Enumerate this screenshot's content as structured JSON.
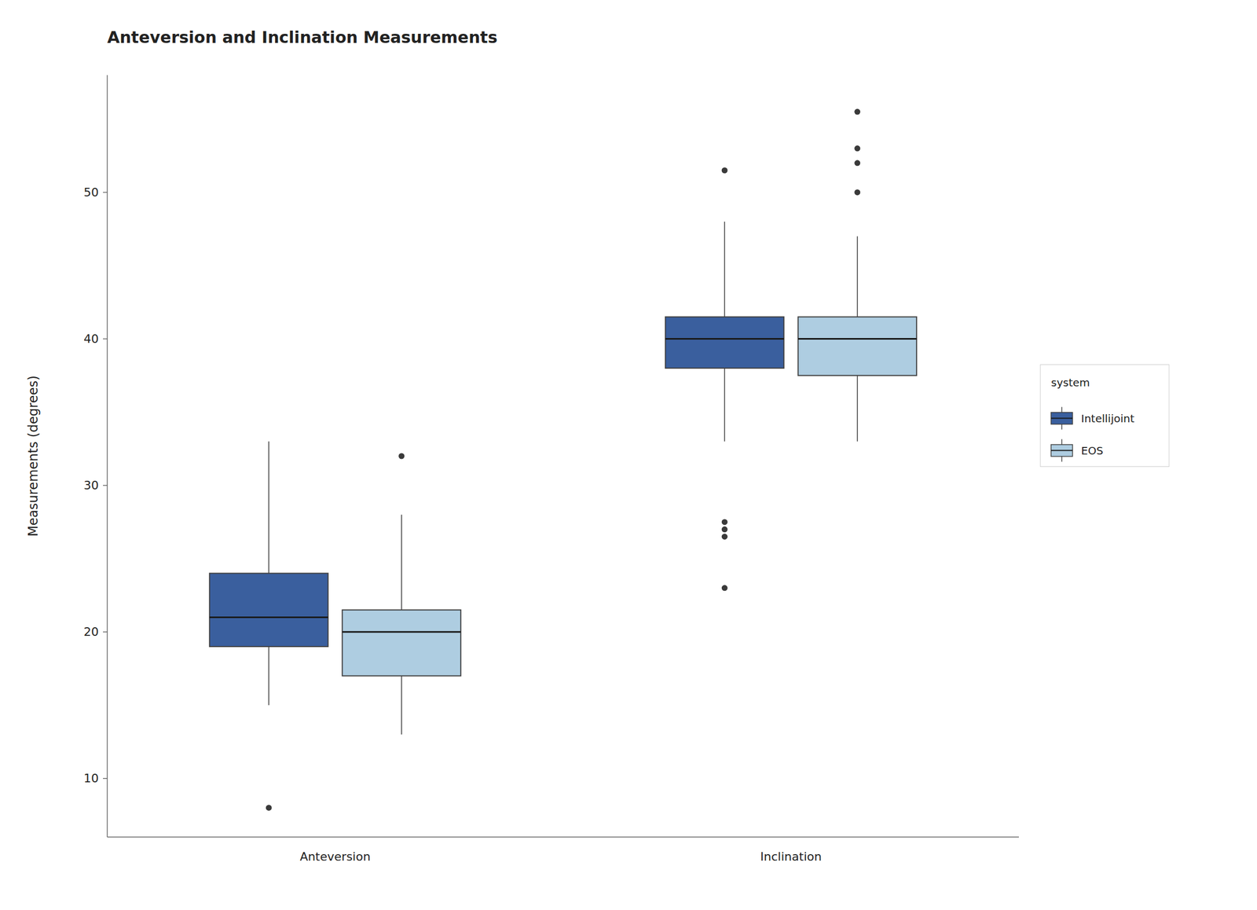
{
  "chart_data": {
    "type": "box",
    "title": "Anteversion and Inclination Measurements",
    "ylabel": "Measurements (degrees)",
    "categories": [
      "Anteversion",
      "Inclination"
    ],
    "series": [
      {
        "name": "Intellijoint",
        "color": "#3a5f9e",
        "q1": [
          19.0,
          38.0
        ],
        "median": [
          21.0,
          40.0
        ],
        "q3": [
          24.0,
          41.5
        ],
        "whislo": [
          15.0,
          33.0
        ],
        "whishi": [
          33.0,
          48.0
        ],
        "fliers": [
          [
            8.0
          ],
          [
            23.0,
            26.5,
            27.0,
            27.5,
            51.5
          ]
        ]
      },
      {
        "name": "EOS",
        "color": "#aecde1",
        "q1": [
          17.0,
          37.5
        ],
        "median": [
          20.0,
          40.0
        ],
        "q3": [
          21.5,
          41.5
        ],
        "whislo": [
          13.0,
          33.0
        ],
        "whishi": [
          28.0,
          47.0
        ],
        "fliers": [
          [
            32.0
          ],
          [
            50.0,
            52.0,
            53.0,
            55.5
          ]
        ]
      }
    ],
    "legend_title": "system",
    "legend": "right",
    "grid": false,
    "ylim": [
      6,
      58
    ],
    "yticks": [
      10,
      20,
      30,
      40,
      50
    ]
  }
}
